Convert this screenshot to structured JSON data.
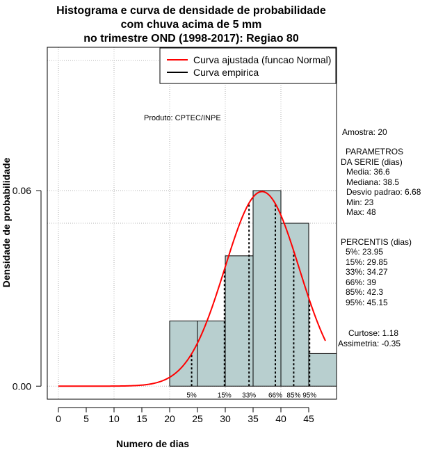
{
  "chart_data": {
    "type": "bar",
    "title": [
      "Histograma e curva de densidade de probabilidade",
      "com chuva acima de 5 mm",
      "no trimestre OND (1998-2017): Regiao 80"
    ],
    "xlabel": "Numero de dias",
    "ylabel": "Densidade de probabilidade",
    "xlim": [
      -2,
      50
    ],
    "ylim": [
      -0.004,
      0.104
    ],
    "x_ticks": [
      0,
      5,
      10,
      15,
      20,
      25,
      30,
      35,
      40,
      45
    ],
    "y_ticks": [
      0.0,
      0.06
    ],
    "y_tick_labels": [
      "0.00",
      "0.06"
    ],
    "grid_x": [
      0,
      10,
      20,
      30,
      40
    ],
    "grid_y": [
      0.0,
      0.05,
      0.06,
      0.1
    ],
    "bins": [
      {
        "x0": 20,
        "x1": 25,
        "density": 0.02
      },
      {
        "x0": 25,
        "x1": 30,
        "density": 0.02
      },
      {
        "x0": 30,
        "x1": 35,
        "density": 0.04
      },
      {
        "x0": 35,
        "x1": 40,
        "density": 0.06
      },
      {
        "x0": 40,
        "x1": 45,
        "density": 0.05
      },
      {
        "x0": 45,
        "x1": 50,
        "density": 0.01
      }
    ],
    "normal_fit": {
      "mean": 36.6,
      "sd": 6.68,
      "x_range": [
        0,
        48
      ]
    },
    "percentiles": [
      {
        "label": "5%",
        "value": 23.95
      },
      {
        "label": "15%",
        "value": 29.85
      },
      {
        "label": "33%",
        "value": 34.27
      },
      {
        "label": "66%",
        "value": 39
      },
      {
        "label": "85%",
        "value": 42.3
      },
      {
        "label": "95%",
        "value": 45.15
      }
    ],
    "legend": {
      "position": "top-right",
      "items": [
        {
          "label": "Curva ajustada (funcao Normal)",
          "color": "#ff0000"
        },
        {
          "label": "Curva empirica",
          "color": "#000000"
        }
      ]
    },
    "colors": {
      "bar_fill": "#b8cfcf",
      "curve": "#ff0000",
      "grid": "#b3b3b3"
    }
  },
  "annotations": {
    "produto": "Produto: CPTEC/INPE",
    "amostra": "Amostra: 20",
    "parametros_title_1": "PARAMETROS",
    "parametros_title_2": "DA SERIE (dias)",
    "media": "Media: 36.6",
    "mediana": "Mediana: 38.5",
    "desvio": "Desvio padrao: 6.68",
    "min": "Min: 23",
    "max": "Max: 48",
    "percentis_title": "PERCENTIS (dias)",
    "p5": "5%: 23.95",
    "p15": "15%: 29.85",
    "p33": "33%: 34.27",
    "p66": "66%: 39",
    "p85": "85%: 42.3",
    "p95": "95%: 45.15",
    "curtose": "Curtose: 1.18",
    "assimetria": "Assimetria: -0.35"
  }
}
